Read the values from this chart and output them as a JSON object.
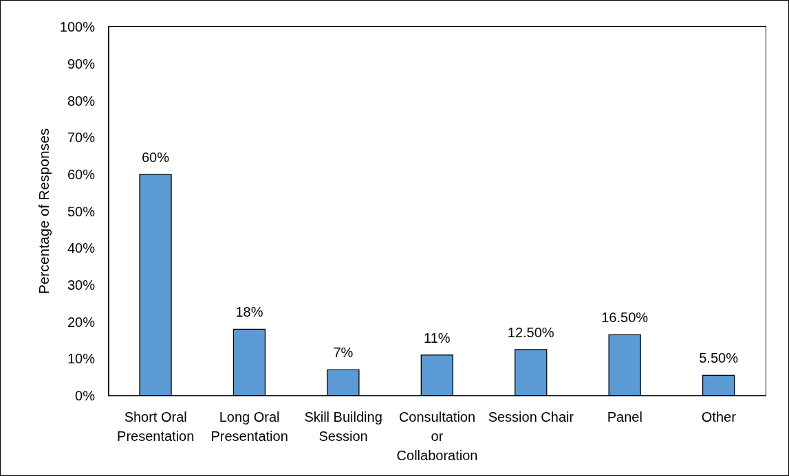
{
  "chart_data": {
    "type": "bar",
    "ylabel": "Percentage of Responses",
    "categories": [
      "Short Oral Presentation",
      "Long Oral Presentation",
      "Skill Building Session",
      "Consultation or Collaboration",
      "Session Chair",
      "Panel",
      "Other"
    ],
    "values": [
      60,
      18,
      7,
      11,
      12.5,
      16.5,
      5.5
    ],
    "value_labels": [
      "60%",
      "18%",
      "7%",
      "11%",
      "12.50%",
      "16.50%",
      "5.50%"
    ],
    "color": "#5b9bd5",
    "ylim": [
      0,
      100
    ],
    "yticks": [
      {
        "value": 0,
        "label": "0%"
      },
      {
        "value": 10,
        "label": "10%"
      },
      {
        "value": 20,
        "label": "20%"
      },
      {
        "value": 30,
        "label": "30%"
      },
      {
        "value": 40,
        "label": "40%"
      },
      {
        "value": 50,
        "label": "50%"
      },
      {
        "value": 60,
        "label": "60%"
      },
      {
        "value": 70,
        "label": "70%"
      },
      {
        "value": 80,
        "label": "80%"
      },
      {
        "value": 90,
        "label": "90%"
      },
      {
        "value": 100,
        "label": "100%"
      }
    ]
  }
}
